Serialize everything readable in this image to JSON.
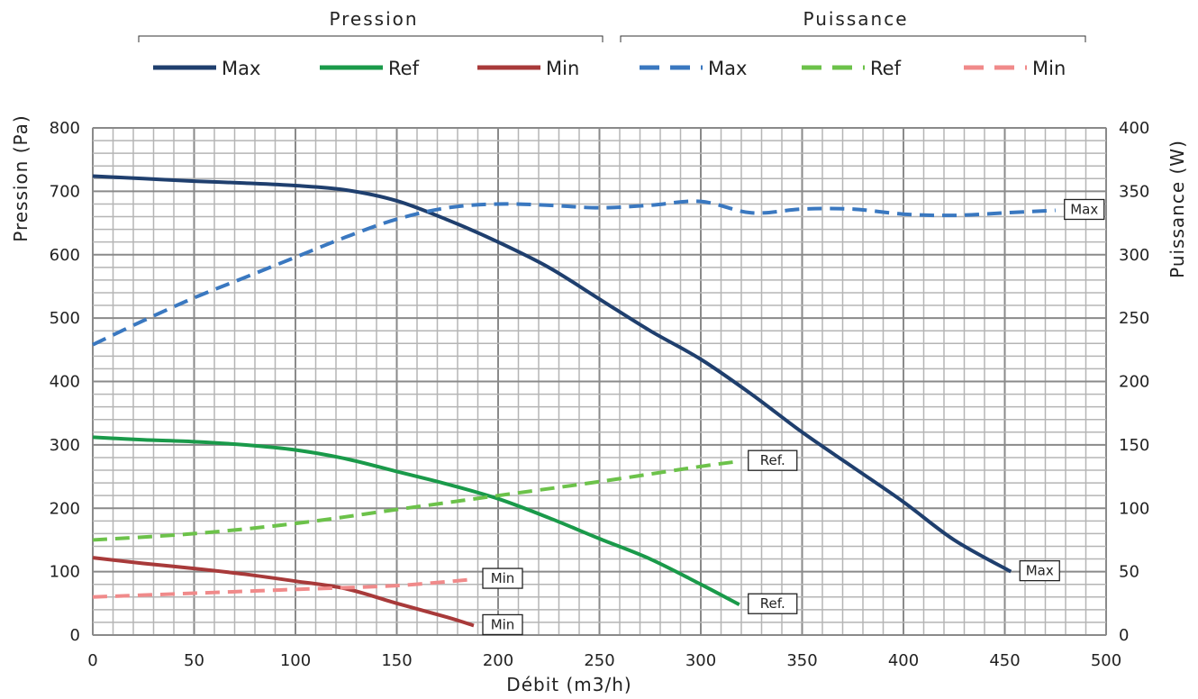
{
  "chart_data": {
    "type": "line",
    "xlabel": "Débit (m3/h)",
    "ylabel_left": "Pression (Pa)",
    "ylabel_right": "Puissance (W)",
    "xlim": [
      0,
      500
    ],
    "ylim_left": [
      0,
      800
    ],
    "ylim_right": [
      0,
      400
    ],
    "grid": true,
    "legend_position": "top",
    "x_ticks": [
      "0",
      "50",
      "100",
      "150",
      "200",
      "250",
      "300",
      "350",
      "400",
      "450",
      "500"
    ],
    "y_left_ticks": [
      "0",
      "100",
      "200",
      "300",
      "400",
      "500",
      "600",
      "700",
      "800"
    ],
    "y_right_ticks": [
      "0",
      "50",
      "100",
      "150",
      "200",
      "250",
      "300",
      "350",
      "400"
    ],
    "legend_groups": [
      {
        "title": "Pression",
        "items": [
          "Max",
          "Ref",
          "Min"
        ]
      },
      {
        "title": "Puissance",
        "items": [
          "Max",
          "Ref",
          "Min"
        ]
      }
    ],
    "series": [
      {
        "name": "Max",
        "group": "Pression",
        "axis": "left",
        "style": "solid",
        "color": "#1f3f6e",
        "x": [
          0,
          25,
          50,
          75,
          100,
          125,
          150,
          175,
          200,
          225,
          250,
          275,
          300,
          325,
          350,
          375,
          400,
          425,
          453
        ],
        "y": [
          724,
          720,
          716,
          713,
          709,
          702,
          685,
          655,
          620,
          580,
          530,
          480,
          435,
          380,
          320,
          265,
          210,
          150,
          100
        ],
        "end_label": "Max"
      },
      {
        "name": "Ref",
        "group": "Pression",
        "axis": "left",
        "style": "solid",
        "color": "#1a9a4a",
        "x": [
          0,
          25,
          50,
          75,
          100,
          125,
          150,
          175,
          200,
          225,
          250,
          275,
          300,
          319
        ],
        "y": [
          312,
          308,
          305,
          300,
          292,
          278,
          258,
          238,
          215,
          185,
          152,
          120,
          80,
          48
        ],
        "end_label": "Ref."
      },
      {
        "name": "Min",
        "group": "Pression",
        "axis": "left",
        "style": "solid",
        "color": "#a83a3a",
        "x": [
          0,
          25,
          50,
          75,
          100,
          125,
          150,
          175,
          188
        ],
        "y": [
          122,
          113,
          105,
          96,
          85,
          73,
          50,
          28,
          15
        ],
        "end_label": "Min"
      },
      {
        "name": "Max",
        "group": "Puissance",
        "axis": "right",
        "style": "dashed",
        "color": "#3a78c0",
        "x": [
          0,
          25,
          50,
          75,
          100,
          125,
          150,
          175,
          200,
          225,
          250,
          275,
          300,
          325,
          350,
          375,
          400,
          425,
          450,
          475
        ],
        "y": [
          229,
          248,
          266,
          282,
          298,
          314,
          328,
          337,
          340,
          339,
          337,
          339,
          342,
          333,
          336,
          336,
          332,
          331,
          333,
          335
        ],
        "end_label": "Max"
      },
      {
        "name": "Ref",
        "group": "Puissance",
        "axis": "right",
        "style": "dashed",
        "color": "#6cc24a",
        "x": [
          0,
          50,
          100,
          150,
          200,
          250,
          300,
          319
        ],
        "y": [
          75,
          80,
          88,
          99,
          110,
          121,
          133,
          137
        ],
        "end_label": "Ref."
      },
      {
        "name": "Min",
        "group": "Puissance",
        "axis": "right",
        "style": "dashed",
        "color": "#f08a8a",
        "x": [
          0,
          50,
          100,
          150,
          188
        ],
        "y": [
          30,
          33,
          36,
          39,
          44
        ],
        "end_label": "Min"
      }
    ]
  }
}
